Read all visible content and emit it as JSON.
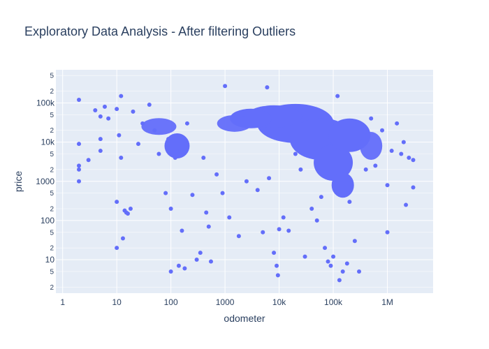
{
  "chart_data": {
    "type": "scatter",
    "title": "Exploratory Data Analysis - After filtering Outliers",
    "xlabel": "odometer",
    "ylabel": "price",
    "x_scale": "log",
    "y_scale": "log",
    "xlim": [
      0.75,
      7000000
    ],
    "ylim": [
      1.4,
      700000
    ],
    "grid": true,
    "marker_color": "#636efa",
    "plot_bg": "#e5ecf6",
    "x_ticks": [
      {
        "value": 1,
        "label": "1"
      },
      {
        "value": 10,
        "label": "10"
      },
      {
        "value": 100,
        "label": "100"
      },
      {
        "value": 1000,
        "label": "1000"
      },
      {
        "value": 10000,
        "label": "10k"
      },
      {
        "value": 100000,
        "label": "100k"
      },
      {
        "value": 1000000,
        "label": "1M"
      }
    ],
    "y_ticks": [
      {
        "value": 10,
        "label": "10"
      },
      {
        "value": 100,
        "label": "100"
      },
      {
        "value": 1000,
        "label": "1000"
      },
      {
        "value": 10000,
        "label": "10k"
      },
      {
        "value": 100000,
        "label": "100k"
      }
    ],
    "y_minor_ticks": [
      {
        "value": 2,
        "label": "2"
      },
      {
        "value": 5,
        "label": "5"
      },
      {
        "value": 20,
        "label": "2"
      },
      {
        "value": 50,
        "label": "5"
      },
      {
        "value": 200,
        "label": "2"
      },
      {
        "value": 500,
        "label": "5"
      },
      {
        "value": 2000,
        "label": "2"
      },
      {
        "value": 5000,
        "label": "5"
      },
      {
        "value": 20000,
        "label": "2"
      },
      {
        "value": 50000,
        "label": "5"
      },
      {
        "value": 200000,
        "label": "2"
      },
      {
        "value": 500000,
        "label": "5"
      }
    ],
    "points": [
      [
        2,
        120000
      ],
      [
        2,
        9000
      ],
      [
        2,
        2500
      ],
      [
        2,
        2000
      ],
      [
        2,
        1000
      ],
      [
        3,
        3500
      ],
      [
        4,
        65000
      ],
      [
        5,
        45000
      ],
      [
        5,
        12000
      ],
      [
        5,
        6000
      ],
      [
        6,
        80000
      ],
      [
        7,
        40000
      ],
      [
        10,
        70000
      ],
      [
        10,
        300
      ],
      [
        10,
        20
      ],
      [
        11,
        15000
      ],
      [
        12,
        150000
      ],
      [
        12,
        4000
      ],
      [
        13,
        35
      ],
      [
        14,
        180
      ],
      [
        15,
        160
      ],
      [
        16,
        150
      ],
      [
        18,
        200
      ],
      [
        20,
        60000
      ],
      [
        25,
        9000
      ],
      [
        30,
        30000
      ],
      [
        40,
        90000
      ],
      [
        50,
        20000
      ],
      [
        60,
        5000
      ],
      [
        80,
        500
      ],
      [
        90,
        12000
      ],
      [
        100,
        5
      ],
      [
        100,
        200
      ],
      [
        120,
        4000
      ],
      [
        140,
        7
      ],
      [
        150,
        6000
      ],
      [
        160,
        55
      ],
      [
        180,
        6
      ],
      [
        200,
        30000
      ],
      [
        250,
        450
      ],
      [
        300,
        10
      ],
      [
        350,
        15
      ],
      [
        400,
        4000
      ],
      [
        450,
        160
      ],
      [
        500,
        70
      ],
      [
        550,
        9
      ],
      [
        700,
        1500
      ],
      [
        900,
        500
      ],
      [
        1000,
        270000
      ],
      [
        1200,
        120
      ],
      [
        1800,
        40
      ],
      [
        2500,
        1000
      ],
      [
        4000,
        600
      ],
      [
        5000,
        50
      ],
      [
        6000,
        250000
      ],
      [
        6500,
        1200
      ],
      [
        8000,
        15
      ],
      [
        9000,
        7
      ],
      [
        9500,
        4
      ],
      [
        10000,
        60
      ],
      [
        12000,
        120
      ],
      [
        15000,
        55
      ],
      [
        20000,
        5000
      ],
      [
        25000,
        2000
      ],
      [
        30000,
        12
      ],
      [
        40000,
        200
      ],
      [
        50000,
        100
      ],
      [
        60000,
        400
      ],
      [
        70000,
        20
      ],
      [
        80000,
        9
      ],
      [
        90000,
        7
      ],
      [
        100000,
        12
      ],
      [
        120000,
        150000
      ],
      [
        130000,
        3
      ],
      [
        150000,
        5
      ],
      [
        180000,
        8
      ],
      [
        200000,
        300
      ],
      [
        250000,
        30
      ],
      [
        300000,
        5
      ],
      [
        400000,
        2000
      ],
      [
        500000,
        40000
      ],
      [
        600000,
        2500
      ],
      [
        800000,
        20000
      ],
      [
        1000000,
        50
      ],
      [
        1000000,
        800
      ],
      [
        1200000,
        6000
      ],
      [
        1500000,
        30000
      ],
      [
        1800000,
        5000
      ],
      [
        2000000,
        10000
      ],
      [
        2200000,
        250
      ],
      [
        2500000,
        4000
      ],
      [
        3000000,
        700
      ],
      [
        3000000,
        3500
      ]
    ]
  }
}
